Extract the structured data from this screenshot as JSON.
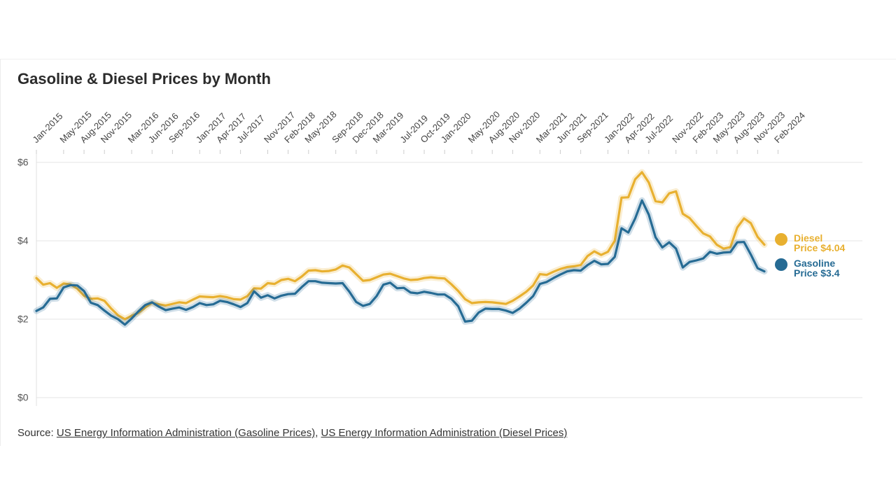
{
  "chart_data": {
    "type": "line",
    "title": "Gasoline & Diesel Prices by Month",
    "categories": [
      "Jan-2015",
      null,
      null,
      null,
      "May-2015",
      null,
      null,
      "Aug-2015",
      null,
      null,
      "Nov-2015",
      null,
      null,
      null,
      "Mar-2016",
      null,
      null,
      "Jun-2016",
      null,
      null,
      "Sep-2016",
      null,
      null,
      null,
      "Jan-2017",
      null,
      null,
      "Apr-2017",
      null,
      null,
      "Jul-2017",
      null,
      null,
      null,
      "Nov-2017",
      null,
      null,
      "Feb-2018",
      null,
      null,
      "May-2018",
      null,
      null,
      null,
      "Sep-2018",
      null,
      null,
      "Dec-2018",
      null,
      null,
      "Mar-2019",
      null,
      null,
      null,
      "Jul-2019",
      null,
      null,
      "Oct-2019",
      null,
      null,
      "Jan-2020",
      null,
      null,
      null,
      "May-2020",
      null,
      null,
      "Aug-2020",
      null,
      null,
      "Nov-2020",
      null,
      null,
      null,
      "Mar-2021",
      null,
      null,
      "Jun-2021",
      null,
      null,
      "Sep-2021",
      null,
      null,
      null,
      "Jan-2022",
      null,
      null,
      "Apr-2022",
      null,
      null,
      "Jul-2022",
      null,
      null,
      null,
      "Nov-2022",
      null,
      null,
      "Feb-2023",
      null,
      null,
      "May-2023",
      null,
      null,
      "Aug-2023",
      null,
      null,
      "Nov-2023",
      null,
      null,
      "Feb-2024"
    ],
    "series": [
      {
        "name": "Diesel Price",
        "end_label": "$4.04",
        "color": "#e8b030",
        "values": [
          3.05,
          2.88,
          2.92,
          2.8,
          2.91,
          2.89,
          2.78,
          2.6,
          2.52,
          2.53,
          2.47,
          2.27,
          2.1,
          2.0,
          2.09,
          2.16,
          2.3,
          2.42,
          2.38,
          2.35,
          2.39,
          2.43,
          2.41,
          2.5,
          2.58,
          2.57,
          2.56,
          2.59,
          2.56,
          2.51,
          2.5,
          2.59,
          2.79,
          2.78,
          2.92,
          2.9,
          3.0,
          3.03,
          2.97,
          3.09,
          3.24,
          3.25,
          3.22,
          3.23,
          3.27,
          3.37,
          3.32,
          3.15,
          2.98,
          3.0,
          3.07,
          3.14,
          3.16,
          3.1,
          3.04,
          3.0,
          3.01,
          3.05,
          3.07,
          3.05,
          3.04,
          2.89,
          2.72,
          2.51,
          2.41,
          2.43,
          2.44,
          2.43,
          2.41,
          2.39,
          2.47,
          2.58,
          2.7,
          2.86,
          3.15,
          3.13,
          3.21,
          3.28,
          3.33,
          3.35,
          3.38,
          3.61,
          3.73,
          3.64,
          3.72,
          4.0,
          5.1,
          5.11,
          5.57,
          5.75,
          5.49,
          5.01,
          4.98,
          5.21,
          5.26,
          4.69,
          4.58,
          4.38,
          4.19,
          4.11,
          3.9,
          3.8,
          3.84,
          4.34,
          4.57,
          4.45,
          4.1,
          3.9,
          null,
          null
        ]
      },
      {
        "name": "Gasoline Price",
        "end_label": "$3.4",
        "color": "#266b94",
        "values": [
          2.21,
          2.3,
          2.52,
          2.53,
          2.81,
          2.87,
          2.86,
          2.72,
          2.42,
          2.36,
          2.22,
          2.09,
          2.0,
          1.86,
          2.02,
          2.2,
          2.36,
          2.43,
          2.32,
          2.23,
          2.27,
          2.3,
          2.24,
          2.31,
          2.41,
          2.36,
          2.38,
          2.47,
          2.44,
          2.38,
          2.31,
          2.41,
          2.71,
          2.55,
          2.61,
          2.53,
          2.6,
          2.64,
          2.65,
          2.82,
          2.97,
          2.97,
          2.93,
          2.92,
          2.91,
          2.92,
          2.7,
          2.44,
          2.34,
          2.39,
          2.59,
          2.88,
          2.93,
          2.79,
          2.8,
          2.68,
          2.66,
          2.7,
          2.67,
          2.63,
          2.63,
          2.52,
          2.33,
          1.94,
          1.96,
          2.17,
          2.27,
          2.26,
          2.26,
          2.22,
          2.16,
          2.27,
          2.42,
          2.59,
          2.9,
          2.95,
          3.05,
          3.14,
          3.22,
          3.25,
          3.24,
          3.38,
          3.49,
          3.4,
          3.41,
          3.59,
          4.32,
          4.21,
          4.57,
          5.03,
          4.67,
          4.09,
          3.83,
          3.96,
          3.8,
          3.32,
          3.46,
          3.5,
          3.55,
          3.72,
          3.67,
          3.7,
          3.71,
          3.96,
          3.97,
          3.65,
          3.3,
          3.22,
          null,
          null
        ]
      }
    ],
    "ylim": [
      0,
      6
    ],
    "yticks": [
      {
        "value": 0,
        "label": "$0"
      },
      {
        "value": 2,
        "label": "$2"
      },
      {
        "value": 4,
        "label": "$4"
      },
      {
        "value": 6,
        "label": "$6"
      }
    ],
    "grid": true,
    "source_label": "Source:",
    "sources": [
      "US Energy Information Administration (Gasoline Prices)",
      "US Energy Information Administration (Diesel Prices)"
    ]
  }
}
